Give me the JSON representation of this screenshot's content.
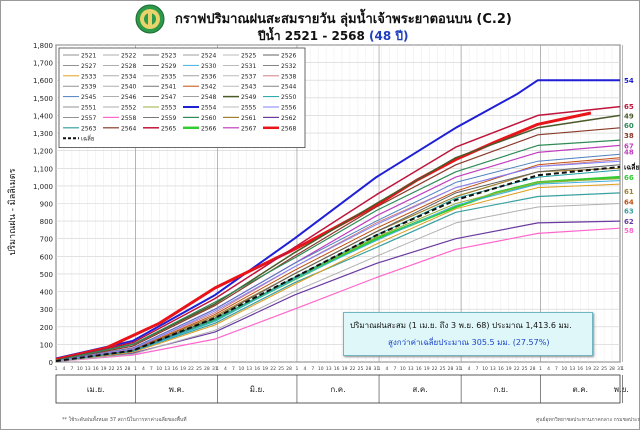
{
  "header": {
    "title": "กราฟปริมาณฝนสะสมรายวัน ลุ่มน้ำเจ้าพระยาตอนบน (C.2)",
    "subtitle_prefix": "ปีน้ำ 2521 - 2568 ",
    "subtitle_years": "(48 ปี)"
  },
  "info": {
    "line1": "ปริมาณฝนสะสม (1 เม.ย. ถึง 3 พ.ย. 68) ประมาณ 1,413.6 มม.",
    "line2": "สูงกว่าค่าเฉลี่ยประมาณ 305.5 มม. (27.57%)"
  },
  "footer": {
    "left": "** ใช้ระดับฝนทั้งหมด 37 สถานีในการหาค่าเฉลี่ยของพื้นที่",
    "right": "ศูนย์อุทกวิทยาชลประทานภาคกลาง  กรมชลประทาน"
  },
  "chart_data": {
    "type": "line",
    "title": "กราฟปริมาณฝนสะสมรายวัน ลุ่มน้ำเจ้าพระยาตอนบน (C.2)",
    "ylabel": "ปริมาณฝน - มิลลิเมตร",
    "ylim": [
      0,
      1800
    ],
    "yticks": [
      0,
      100,
      200,
      300,
      400,
      500,
      600,
      700,
      800,
      900,
      1000,
      1100,
      1200,
      1300,
      1400,
      1500,
      1600,
      1700,
      1800
    ],
    "ytick_labels": [
      "0",
      "100",
      "200",
      "300",
      "400",
      "500",
      "600",
      "700",
      "800",
      "900",
      "1,000",
      "1,100",
      "1,200",
      "1,300",
      "1,400",
      "1,500",
      "1,600",
      "1,700",
      "1,800"
    ],
    "xlim": [
      1,
      214
    ],
    "months": [
      "เม.ย.",
      "พ.ค.",
      "มิ.ย.",
      "ก.ค.",
      "ส.ค.",
      "ก.ย.",
      "ต.ค.",
      "พ.ย."
    ],
    "month_days": [
      30,
      31,
      30,
      31,
      31,
      30,
      31,
      3
    ],
    "grid": true,
    "legend_position": "top-left",
    "years": [
      "2521",
      "2522",
      "2523",
      "2524",
      "2525",
      "2526",
      "2527",
      "2528",
      "2529",
      "2530",
      "2531",
      "2532",
      "2533",
      "2534",
      "2535",
      "2536",
      "2537",
      "2538",
      "2539",
      "2540",
      "2541",
      "2542",
      "2543",
      "2544",
      "2545",
      "2546",
      "2547",
      "2548",
      "2549",
      "2550",
      "2551",
      "2552",
      "2553",
      "2554",
      "2555",
      "2556",
      "2557",
      "2558",
      "2559",
      "2560",
      "2561",
      "2562",
      "2563",
      "2564",
      "2565",
      "2566",
      "2567",
      "2568"
    ],
    "average_label": "เฉลี่ย",
    "series": [
      {
        "name": "2554",
        "color": "#1f1fd6",
        "width": 2,
        "points": [
          [
            1,
            20
          ],
          [
            30,
            120
          ],
          [
            61,
            380
          ],
          [
            91,
            700
          ],
          [
            122,
            1050
          ],
          [
            152,
            1330
          ],
          [
            175,
            1520
          ],
          [
            183,
            1600
          ],
          [
            214,
            1600
          ]
        ]
      },
      {
        "name": "2568",
        "color": "#e8141a",
        "width": 3,
        "points": [
          [
            1,
            15
          ],
          [
            20,
            80
          ],
          [
            40,
            220
          ],
          [
            61,
            420
          ],
          [
            91,
            640
          ],
          [
            106,
            760
          ],
          [
            122,
            890
          ],
          [
            137,
            1030
          ],
          [
            152,
            1150
          ],
          [
            167,
            1250
          ],
          [
            183,
            1350
          ],
          [
            203,
            1413.6
          ]
        ]
      },
      {
        "name": "2565",
        "color": "#c0143c",
        "width": 1.5,
        "points": [
          [
            1,
            10
          ],
          [
            30,
            110
          ],
          [
            61,
            360
          ],
          [
            91,
            650
          ],
          [
            122,
            950
          ],
          [
            152,
            1220
          ],
          [
            183,
            1400
          ],
          [
            214,
            1450
          ]
        ]
      },
      {
        "name": "2549",
        "color": "#4b5a2a",
        "width": 1.5,
        "points": [
          [
            1,
            10
          ],
          [
            30,
            100
          ],
          [
            61,
            330
          ],
          [
            91,
            620
          ],
          [
            122,
            900
          ],
          [
            152,
            1160
          ],
          [
            183,
            1330
          ],
          [
            214,
            1400
          ]
        ]
      },
      {
        "name": "2564",
        "color": "#8a3a2a",
        "width": 1.2,
        "points": [
          [
            1,
            8
          ],
          [
            30,
            90
          ],
          [
            61,
            320
          ],
          [
            91,
            600
          ],
          [
            122,
            880
          ],
          [
            152,
            1120
          ],
          [
            183,
            1290
          ],
          [
            214,
            1330
          ]
        ]
      },
      {
        "name": "2560",
        "color": "#2e8b57",
        "width": 1.2,
        "points": [
          [
            1,
            8
          ],
          [
            30,
            100
          ],
          [
            61,
            340
          ],
          [
            91,
            590
          ],
          [
            122,
            860
          ],
          [
            152,
            1080
          ],
          [
            183,
            1230
          ],
          [
            214,
            1260
          ]
        ]
      },
      {
        "name": "2567",
        "color": "#c040c0",
        "width": 1.2,
        "points": [
          [
            1,
            6
          ],
          [
            30,
            80
          ],
          [
            61,
            300
          ],
          [
            91,
            560
          ],
          [
            122,
            830
          ],
          [
            152,
            1050
          ],
          [
            183,
            1190
          ],
          [
            214,
            1230
          ]
        ]
      },
      {
        "name": "2566",
        "color": "#33cc33",
        "width": 2.5,
        "points": [
          [
            1,
            5
          ],
          [
            30,
            60
          ],
          [
            61,
            240
          ],
          [
            91,
            470
          ],
          [
            122,
            700
          ],
          [
            152,
            880
          ],
          [
            167,
            960
          ],
          [
            183,
            1020
          ],
          [
            214,
            1050
          ]
        ]
      },
      {
        "name": "2562",
        "color": "#6a3aa0",
        "width": 1.2,
        "points": [
          [
            1,
            4
          ],
          [
            30,
            50
          ],
          [
            61,
            170
          ],
          [
            91,
            380
          ],
          [
            122,
            560
          ],
          [
            152,
            700
          ],
          [
            183,
            790
          ],
          [
            214,
            800
          ]
        ]
      },
      {
        "name": "2563",
        "color": "#3aa0a0",
        "width": 1.2,
        "points": [
          [
            1,
            5
          ],
          [
            30,
            60
          ],
          [
            61,
            220
          ],
          [
            91,
            450
          ],
          [
            122,
            650
          ],
          [
            152,
            850
          ],
          [
            183,
            940
          ],
          [
            214,
            960
          ]
        ]
      },
      {
        "name": "2561",
        "color": "#a08030",
        "width": 1.2,
        "points": [
          [
            1,
            6
          ],
          [
            30,
            70
          ],
          [
            61,
            260
          ],
          [
            91,
            500
          ],
          [
            122,
            740
          ],
          [
            152,
            940
          ],
          [
            183,
            1080
          ],
          [
            214,
            1100
          ]
        ]
      },
      {
        "name": "2558",
        "color": "#ff66cc",
        "width": 1.2,
        "points": [
          [
            1,
            3
          ],
          [
            30,
            40
          ],
          [
            61,
            130
          ],
          [
            91,
            300
          ],
          [
            122,
            480
          ],
          [
            152,
            640
          ],
          [
            183,
            730
          ],
          [
            214,
            760
          ]
        ]
      },
      {
        "name": "2553",
        "color": "#9ab040",
        "width": 1,
        "points": [
          [
            1,
            5
          ],
          [
            30,
            70
          ],
          [
            61,
            240
          ],
          [
            91,
            480
          ],
          [
            122,
            710
          ],
          [
            152,
            900
          ],
          [
            183,
            1020
          ],
          [
            214,
            1040
          ]
        ]
      },
      {
        "name": "2545",
        "color": "#5080c0",
        "width": 1,
        "points": [
          [
            1,
            7
          ],
          [
            30,
            80
          ],
          [
            61,
            300
          ],
          [
            91,
            560
          ],
          [
            122,
            800
          ],
          [
            152,
            1020
          ],
          [
            183,
            1140
          ],
          [
            214,
            1180
          ]
        ]
      },
      {
        "name": "2538",
        "color": "#d08080",
        "width": 1,
        "points": [
          [
            1,
            6
          ],
          [
            30,
            75
          ],
          [
            61,
            280
          ],
          [
            91,
            540
          ],
          [
            122,
            790
          ],
          [
            152,
            990
          ],
          [
            183,
            1110
          ],
          [
            214,
            1150
          ]
        ]
      },
      {
        "name": "2526",
        "color": "#606060",
        "width": 1,
        "points": [
          [
            1,
            5
          ],
          [
            30,
            65
          ],
          [
            61,
            250
          ],
          [
            91,
            500
          ],
          [
            122,
            740
          ],
          [
            152,
            960
          ],
          [
            183,
            1080
          ],
          [
            214,
            1120
          ]
        ]
      },
      {
        "name": "2533",
        "color": "#e0a020",
        "width": 1,
        "points": [
          [
            1,
            4
          ],
          [
            30,
            55
          ],
          [
            61,
            210
          ],
          [
            91,
            440
          ],
          [
            122,
            670
          ],
          [
            152,
            870
          ],
          [
            183,
            990
          ],
          [
            214,
            1010
          ]
        ]
      },
      {
        "name": "2530",
        "color": "#40b0e0",
        "width": 1,
        "points": [
          [
            1,
            5
          ],
          [
            30,
            60
          ],
          [
            61,
            230
          ],
          [
            91,
            470
          ],
          [
            122,
            690
          ],
          [
            152,
            890
          ],
          [
            183,
            1010
          ],
          [
            214,
            1030
          ]
        ]
      },
      {
        "name": "2542",
        "color": "#c05010",
        "width": 1,
        "points": [
          [
            1,
            6
          ],
          [
            30,
            70
          ],
          [
            61,
            270
          ],
          [
            91,
            520
          ],
          [
            122,
            760
          ],
          [
            152,
            970
          ],
          [
            183,
            1120
          ],
          [
            214,
            1160
          ]
        ]
      },
      {
        "name": "2550",
        "color": "#20a0a0",
        "width": 1,
        "points": [
          [
            1,
            5
          ],
          [
            30,
            62
          ],
          [
            61,
            240
          ],
          [
            91,
            480
          ],
          [
            122,
            720
          ],
          [
            152,
            930
          ],
          [
            183,
            1050
          ],
          [
            214,
            1090
          ]
        ]
      },
      {
        "name": "2556",
        "color": "#8080ff",
        "width": 1,
        "points": [
          [
            1,
            6
          ],
          [
            30,
            72
          ],
          [
            61,
            290
          ],
          [
            91,
            540
          ],
          [
            122,
            780
          ],
          [
            152,
            990
          ],
          [
            183,
            1110
          ],
          [
            214,
            1140
          ]
        ]
      },
      {
        "name": "2535",
        "color": "#b0b0b0",
        "width": 1,
        "points": [
          [
            1,
            3
          ],
          [
            30,
            45
          ],
          [
            61,
            180
          ],
          [
            91,
            400
          ],
          [
            122,
            600
          ],
          [
            152,
            790
          ],
          [
            183,
            880
          ],
          [
            214,
            900
          ]
        ]
      },
      {
        "name": "เฉลี่ย",
        "color": "#111111",
        "width": 2,
        "dash": "5,3",
        "points": [
          [
            1,
            5
          ],
          [
            30,
            65
          ],
          [
            61,
            250
          ],
          [
            91,
            480
          ],
          [
            122,
            720
          ],
          [
            152,
            920
          ],
          [
            183,
            1060
          ],
          [
            214,
            1108
          ]
        ]
      }
    ],
    "end_labels": [
      {
        "text": "54",
        "y": 1600,
        "color": "#1f1fd6"
      },
      {
        "text": "65",
        "y": 1455,
        "color": "#c0143c"
      },
      {
        "text": "49",
        "y": 1400,
        "color": "#4b5a2a"
      },
      {
        "text": "60",
        "y": 1345,
        "color": "#2e8b57"
      },
      {
        "text": "38",
        "y": 1290,
        "color": "#8a3a2a"
      },
      {
        "text": "67",
        "y": 1230,
        "color": "#c040c0"
      },
      {
        "text": "48",
        "y": 1195,
        "color": "#c040c0"
      },
      {
        "text": "เฉลี่ย",
        "y": 1110,
        "color": "#111111"
      },
      {
        "text": "66",
        "y": 1050,
        "color": "#33cc33"
      },
      {
        "text": "61",
        "y": 970,
        "color": "#a08030"
      },
      {
        "text": "64",
        "y": 910,
        "color": "#c05010"
      },
      {
        "text": "63",
        "y": 860,
        "color": "#3aa0a0"
      },
      {
        "text": "62",
        "y": 800,
        "color": "#6a3aa0"
      },
      {
        "text": "58",
        "y": 750,
        "color": "#ff66cc"
      }
    ]
  }
}
